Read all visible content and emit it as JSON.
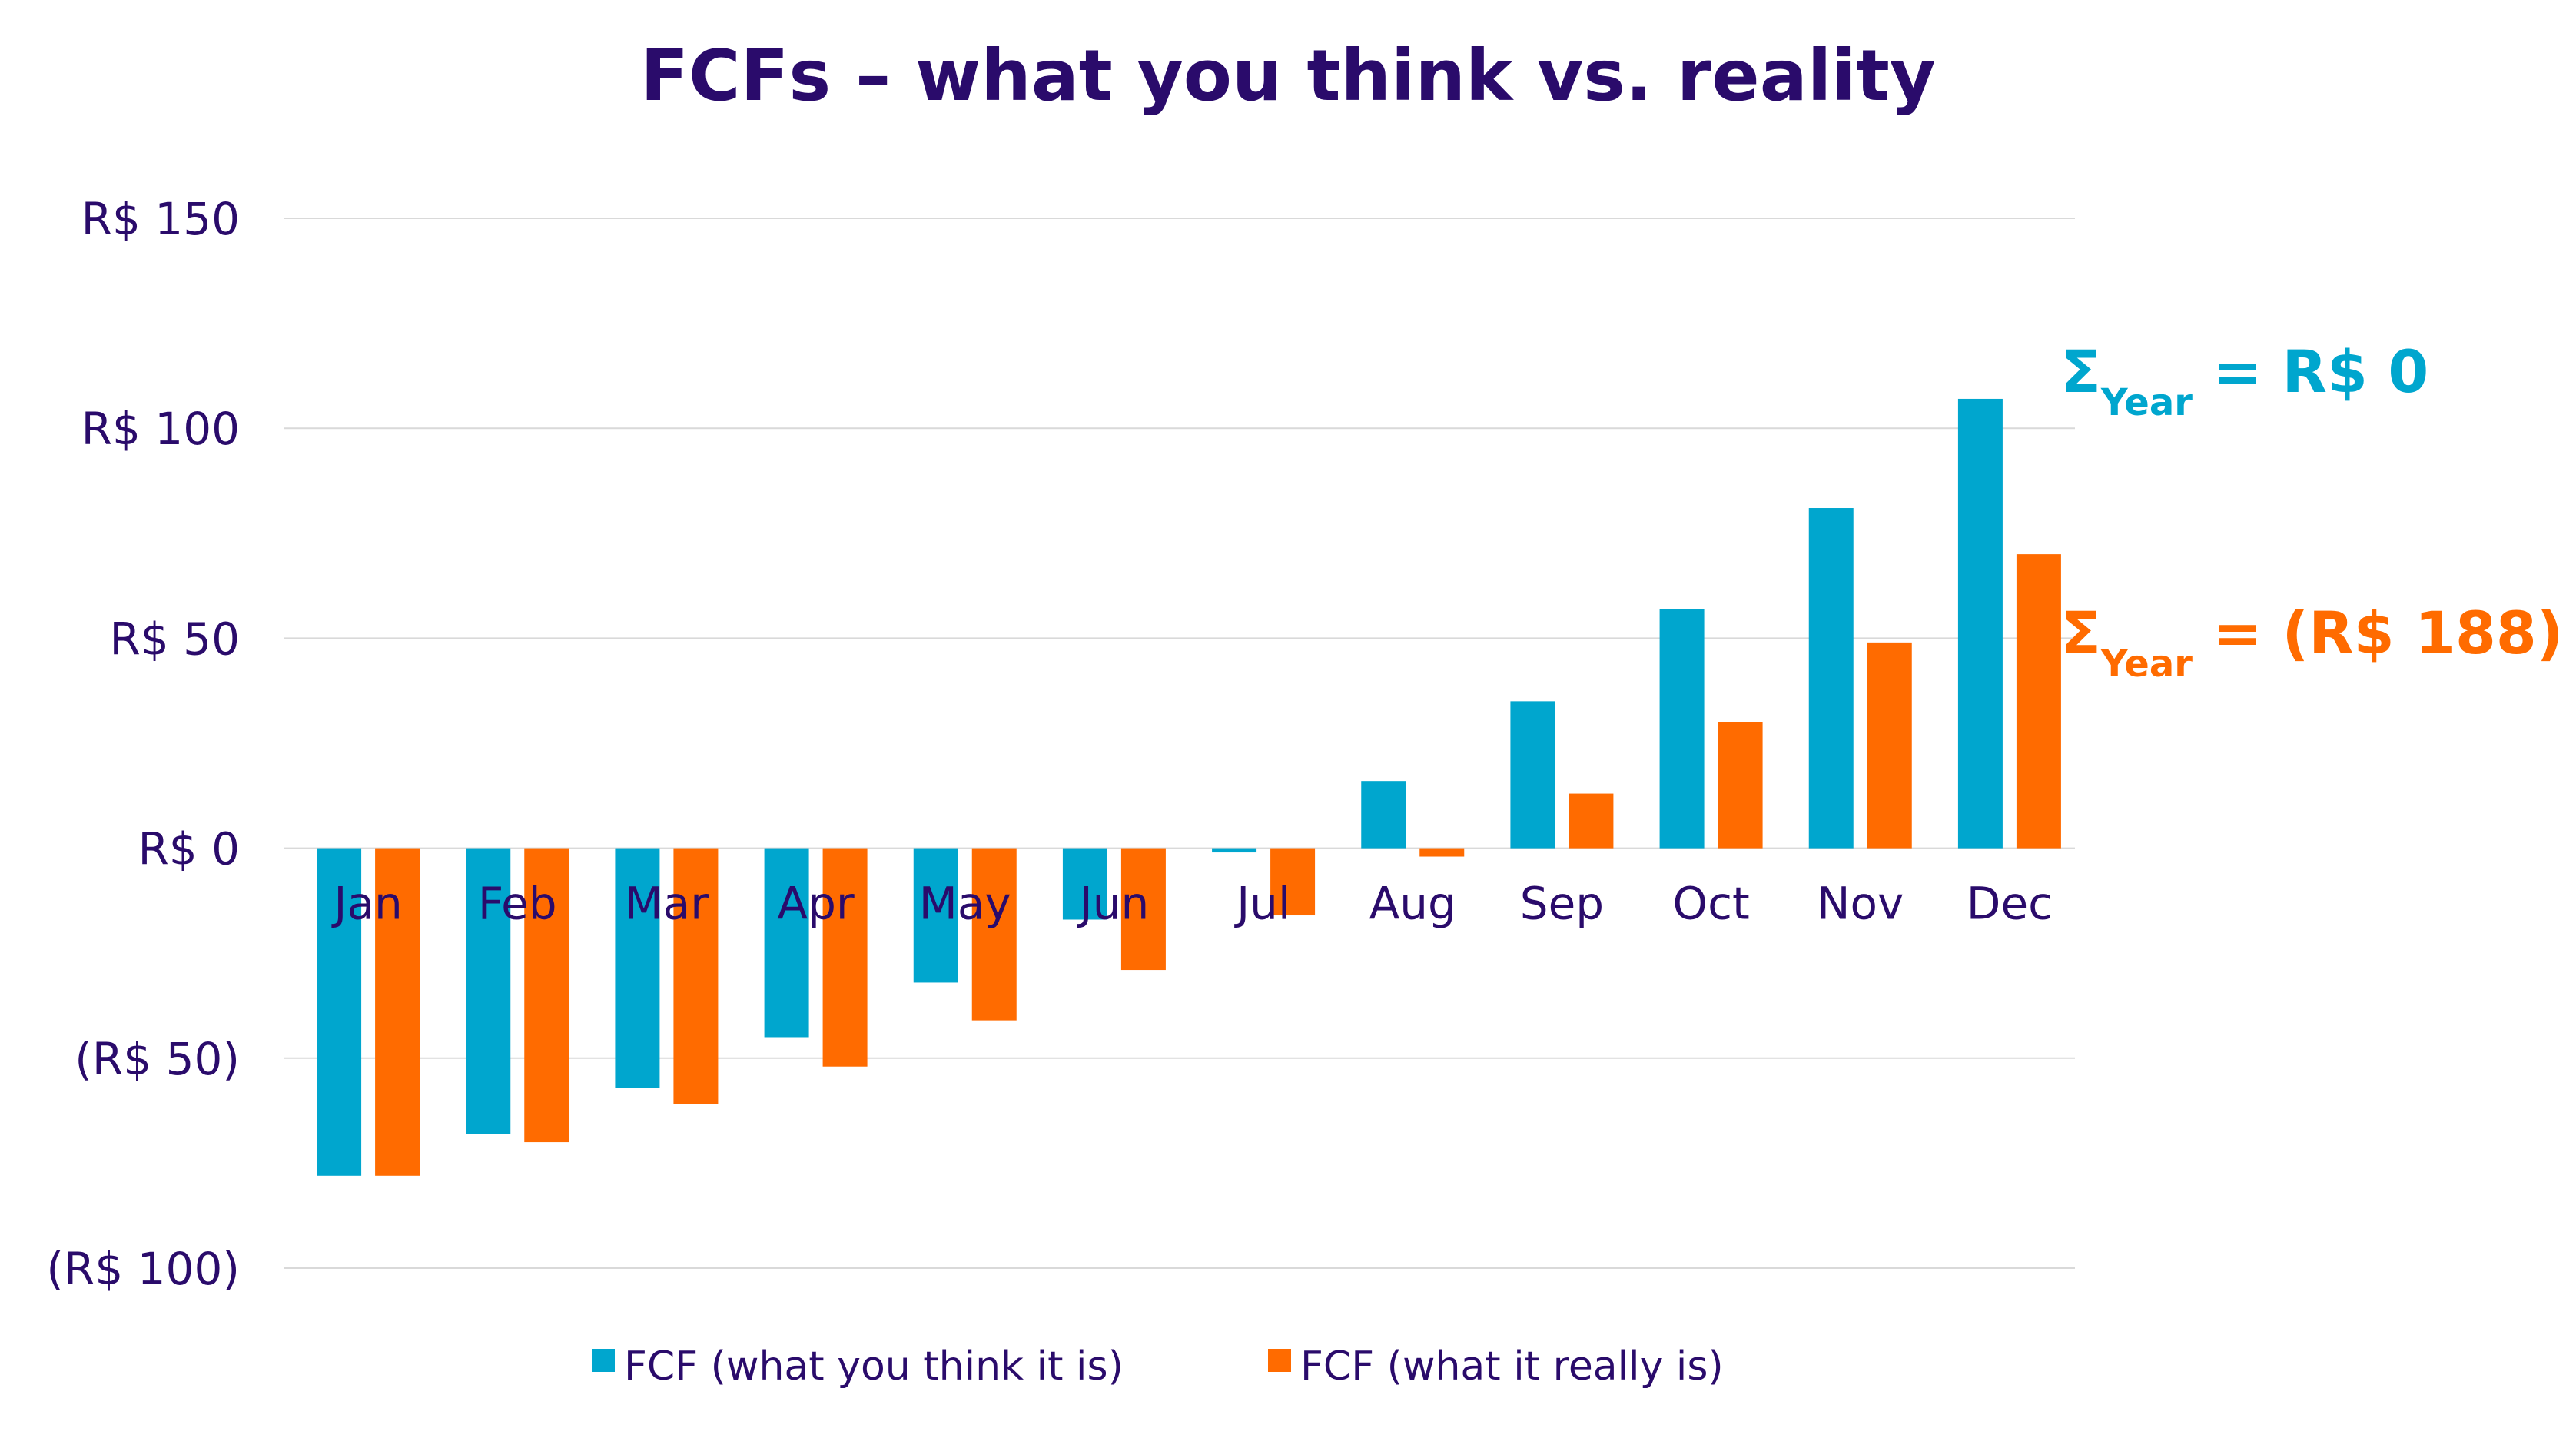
{
  "chart_data": {
    "type": "bar",
    "title": "FCFs – what you think vs. reality",
    "xlabel": "",
    "ylabel": "",
    "categories": [
      "Jan",
      "Feb",
      "Mar",
      "Apr",
      "May",
      "Jun",
      "Jul",
      "Aug",
      "Sep",
      "Oct",
      "Nov",
      "Dec"
    ],
    "series": [
      {
        "name": "FCF (what you think it is)",
        "color": "#00A6CE",
        "values": [
          -78,
          -68,
          -57,
          -45,
          -32,
          -17,
          -1,
          16,
          35,
          57,
          81,
          107
        ]
      },
      {
        "name": "FCF (what it really is)",
        "color": "#FF6B00",
        "values": [
          -78,
          -70,
          -61,
          -52,
          -41,
          -29,
          -16,
          -2,
          13,
          30,
          49,
          70
        ]
      }
    ],
    "ylim": [
      -100,
      150
    ],
    "yticks": [
      150,
      100,
      50,
      0,
      -50,
      -100
    ],
    "ytick_labels": [
      "R$ 150",
      "R$ 100",
      "R$ 50",
      "R$ 0",
      "(R$ 50)",
      "(R$ 100)"
    ],
    "grid": true,
    "legend": "bottom",
    "annotations": [
      {
        "prefix": "Σ",
        "sub": "Year",
        "text": " = R$ 0",
        "color": "#00A6CE"
      },
      {
        "prefix": "Σ",
        "sub": "Year",
        "text": " = (R$ 188)",
        "color": "#FF6B00"
      }
    ]
  },
  "colors": {
    "title": "#2A0B6B",
    "axis_text": "#2A0B6B",
    "grid": "#D9D9D9"
  }
}
